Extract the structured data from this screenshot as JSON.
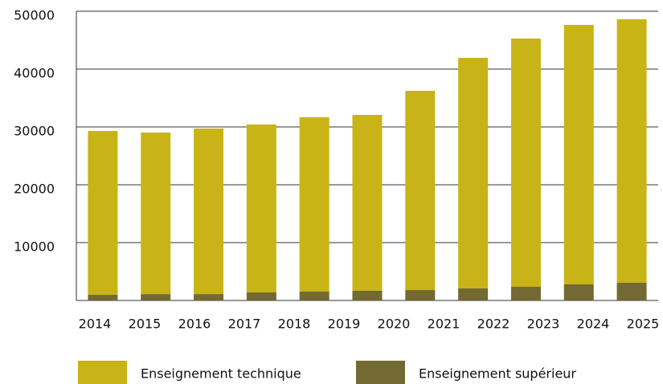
{
  "chart_data": {
    "type": "stacked_bar",
    "categories": [
      "2014",
      "2015",
      "2016",
      "2017",
      "2018",
      "2019",
      "2020",
      "2021",
      "2022",
      "2023",
      "2024",
      "2025"
    ],
    "series": [
      {
        "name": "Enseignement supérieur",
        "color": "#736a33",
        "values": [
          970,
          1100,
          1100,
          1390,
          1530,
          1670,
          1800,
          2080,
          2360,
          2780,
          3060,
          null
        ]
      },
      {
        "name": "Enseignement technique",
        "color": "#c8b416",
        "values": [
          28330,
          27930,
          28620,
          29030,
          30140,
          30410,
          34450,
          39860,
          42920,
          44860,
          45550,
          null
        ]
      }
    ],
    "ylim": [
      0,
      50000
    ],
    "yticks": [
      10000,
      20000,
      30000,
      40000,
      50000
    ],
    "grid": true
  }
}
